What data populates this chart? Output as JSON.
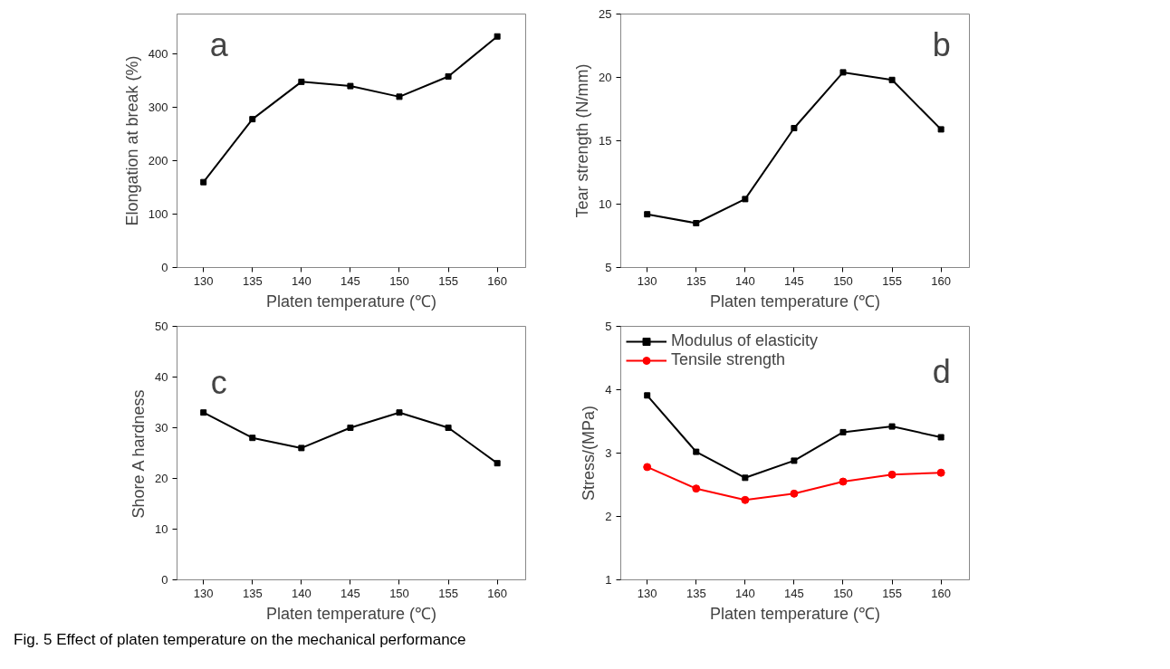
{
  "chart_data": [
    {
      "type": "line",
      "x": [
        130,
        135,
        140,
        145,
        150,
        155,
        160
      ],
      "xlim": [
        127.3,
        162.9
      ],
      "xticks": [
        130,
        135,
        140,
        145,
        150,
        155,
        160
      ],
      "ylim": [
        0,
        475
      ],
      "yticks": [
        0,
        100,
        200,
        300,
        400
      ],
      "xlabel": "Platen temperature (℃)",
      "ylabel": "Elongation at break (%)",
      "annotations": [
        "a"
      ],
      "marker": "square",
      "grid": false,
      "legend": false,
      "series": [
        {
          "color": "#000000",
          "values": [
            160,
            278,
            348,
            340,
            320,
            358,
            433
          ]
        }
      ]
    },
    {
      "type": "line",
      "x": [
        130,
        135,
        140,
        145,
        150,
        155,
        160
      ],
      "xlim": [
        127.3,
        162.9
      ],
      "xticks": [
        130,
        135,
        140,
        145,
        150,
        155,
        160
      ],
      "ylim": [
        5,
        25
      ],
      "yticks": [
        5,
        10,
        15,
        20,
        25
      ],
      "xlabel": "Platen temperature (℃)",
      "ylabel": "Tear strength (N/mm)",
      "annotations": [
        "b"
      ],
      "marker": "square",
      "grid": false,
      "legend": false,
      "series": [
        {
          "color": "#000000",
          "values": [
            9.2,
            8.5,
            10.4,
            16.0,
            20.4,
            19.8,
            15.9
          ]
        }
      ]
    },
    {
      "type": "line",
      "x": [
        130,
        135,
        140,
        145,
        150,
        155,
        160
      ],
      "xlim": [
        127.3,
        162.9
      ],
      "xticks": [
        130,
        135,
        140,
        145,
        150,
        155,
        160
      ],
      "ylim": [
        0,
        50
      ],
      "yticks": [
        0,
        10,
        20,
        30,
        40,
        50
      ],
      "xlabel": "Platen temperature (℃)",
      "ylabel": "Shore A hardness",
      "annotations": [
        "c"
      ],
      "marker": "square",
      "grid": false,
      "legend": false,
      "series": [
        {
          "color": "#000000",
          "values": [
            33,
            28,
            26,
            30,
            33,
            30,
            23
          ]
        }
      ]
    },
    {
      "type": "line",
      "x": [
        130,
        135,
        140,
        145,
        150,
        155,
        160
      ],
      "xlim": [
        127.3,
        162.9
      ],
      "xticks": [
        130,
        135,
        140,
        145,
        150,
        155,
        160
      ],
      "ylim": [
        1,
        5
      ],
      "yticks": [
        1,
        2,
        3,
        4,
        5
      ],
      "xlabel": "Platen temperature (℃)",
      "ylabel": "Stress/(MPa)",
      "annotations": [
        "d",
        "Fig. 5 Effect of platen temperature on the mechanical performance"
      ],
      "grid": false,
      "legend": "top left",
      "series": [
        {
          "name": "Modulus of elasticity",
          "color": "#000000",
          "marker": "square",
          "values": [
            3.91,
            3.02,
            2.61,
            2.88,
            3.33,
            3.42,
            3.25
          ]
        },
        {
          "name": "Tensile strength",
          "color": "#ff0000",
          "marker": "circle",
          "values": [
            2.78,
            2.44,
            2.26,
            2.36,
            2.55,
            2.66,
            2.69
          ]
        }
      ]
    }
  ]
}
